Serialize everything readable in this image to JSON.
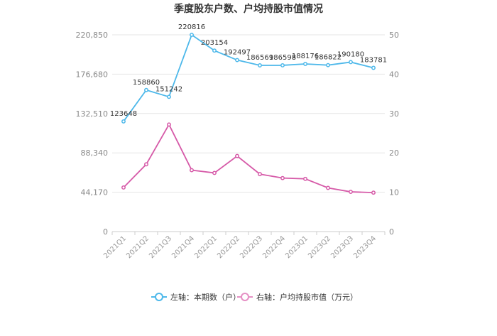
{
  "chart_data": {
    "type": "line",
    "title": "季度股东户数、户均持股市值情况",
    "categories": [
      "2021Q1",
      "2021Q2",
      "2021Q3",
      "2021Q4",
      "2022Q1",
      "2022Q2",
      "2022Q3",
      "2022Q4",
      "2023Q1",
      "2023Q2",
      "2023Q3",
      "2023Q4"
    ],
    "left_axis": {
      "ticks": [
        "0",
        "44,170",
        "88,340",
        "132,510",
        "176,680",
        "220,850"
      ],
      "ylim": [
        0,
        220850
      ]
    },
    "right_axis": {
      "ticks": [
        "0",
        "10",
        "20",
        "30",
        "40",
        "50"
      ],
      "ylim": [
        0,
        50
      ]
    },
    "series": [
      {
        "name": "左轴：本期数（户）",
        "axis": "left",
        "color": "#4db8ea",
        "values": [
          123648,
          158860,
          151242,
          220816,
          203154,
          192497,
          186569,
          186598,
          188176,
          186822,
          190180,
          183781
        ],
        "labels": [
          "123648",
          "158860",
          "151242",
          "220816",
          "203154",
          "192497",
          "186569",
          "186598",
          "188176",
          "186822",
          "190180",
          "183781"
        ]
      },
      {
        "name": "右轴：户均持股市值（万元）",
        "axis": "right",
        "color": "#d65aa8",
        "values": [
          11.2,
          17.1,
          27.2,
          15.6,
          14.9,
          19.2,
          14.6,
          13.6,
          13.4,
          11.1,
          10.1,
          9.9
        ]
      }
    ],
    "grid": true,
    "legend_position": "bottom"
  }
}
